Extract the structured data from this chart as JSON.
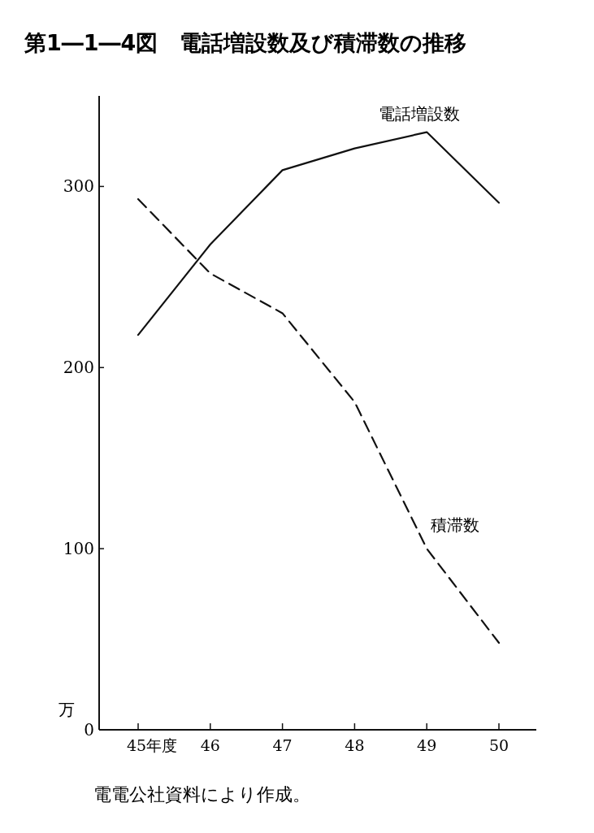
{
  "chart_data": {
    "type": "line",
    "title": "第1―1―4図　電話増設数及び積滞数の推移",
    "categories": [
      "45年度",
      "46",
      "47",
      "48",
      "49",
      "50"
    ],
    "ylabel": "万",
    "ylim": [
      0,
      350
    ],
    "yticks": [
      0,
      100,
      200,
      300
    ],
    "grid": false,
    "legend": false,
    "marker": "none",
    "series": [
      {
        "name": "電話増設数",
        "color": "#111111",
        "line_style": "solid",
        "values": [
          218,
          268,
          309,
          321,
          330,
          291
        ]
      },
      {
        "name": "積滞数",
        "color": "#111111",
        "line_style": "dashed",
        "values": [
          293,
          252,
          230,
          181,
          100,
          48
        ]
      }
    ],
    "annotations": [
      "電電公社資料により作成。"
    ]
  }
}
